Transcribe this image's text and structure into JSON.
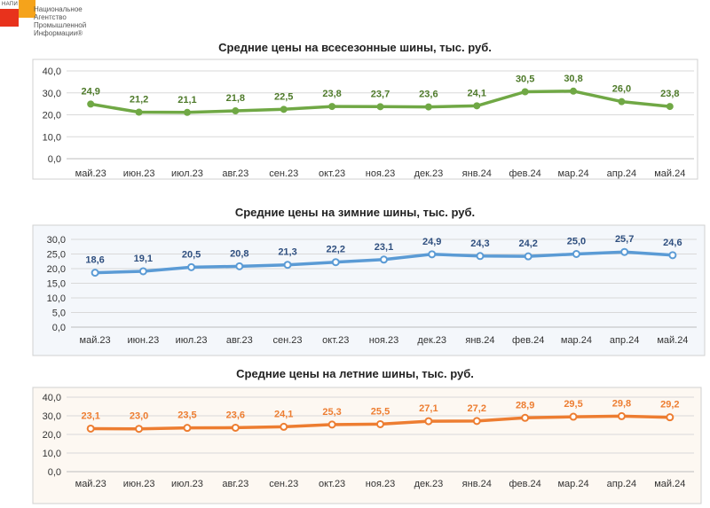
{
  "logo": {
    "abbr": "НАПИ",
    "text": "Национальное Агентство Промышленной Информации®",
    "colors": {
      "red": "#e8321c",
      "orange": "#f5a31b"
    }
  },
  "chart_data": [
    {
      "type": "line",
      "title": "Средние цены на всесезонные шины, тыс. руб.",
      "categories": [
        "май.23",
        "июн.23",
        "июл.23",
        "авг.23",
        "сен.23",
        "окт.23",
        "ноя.23",
        "дек.23",
        "янв.24",
        "фев.24",
        "мар.24",
        "апр.24",
        "май.24"
      ],
      "values": [
        24.9,
        21.2,
        21.1,
        21.8,
        22.5,
        23.8,
        23.7,
        23.6,
        24.1,
        30.5,
        30.8,
        26.0,
        23.8
      ],
      "value_labels": [
        "24,9",
        "21,2",
        "21,1",
        "21,8",
        "22,5",
        "23,8",
        "23,7",
        "23,6",
        "24,1",
        "30,5",
        "30,8",
        "26,0",
        "23,8"
      ],
      "y_ticks": [
        "0,0",
        "10,0",
        "20,0",
        "30,0",
        "40,0"
      ],
      "ylim": [
        0,
        40
      ],
      "color": "#70a845",
      "background": "#ffffff",
      "grid": true
    },
    {
      "type": "line",
      "title": "Средние цены на зимние шины, тыс. руб.",
      "categories": [
        "май.23",
        "июн.23",
        "июл.23",
        "авг.23",
        "сен.23",
        "окт.23",
        "ноя.23",
        "дек.23",
        "янв.24",
        "фев.24",
        "мар.24",
        "апр.24",
        "май.24"
      ],
      "values": [
        18.6,
        19.1,
        20.5,
        20.8,
        21.3,
        22.2,
        23.1,
        24.9,
        24.3,
        24.2,
        25.0,
        25.7,
        24.6
      ],
      "value_labels": [
        "18,6",
        "19,1",
        "20,5",
        "20,8",
        "21,3",
        "22,2",
        "23,1",
        "24,9",
        "24,3",
        "24,2",
        "25,0",
        "25,7",
        "24,6"
      ],
      "y_ticks": [
        "0,0",
        "5,0",
        "10,0",
        "15,0",
        "20,0",
        "25,0",
        "30,0"
      ],
      "ylim": [
        0,
        30
      ],
      "color": "#5b9bd5",
      "label_color": "#2f4f7f",
      "background": "#f4f7fb",
      "grid": true
    },
    {
      "type": "line",
      "title": "Средние цены на летние шины, тыс. руб.",
      "categories": [
        "май.23",
        "июн.23",
        "июл.23",
        "авг.23",
        "сен.23",
        "окт.23",
        "ноя.23",
        "дек.23",
        "янв.24",
        "фев.24",
        "мар.24",
        "апр.24",
        "май.24"
      ],
      "values": [
        23.1,
        23.0,
        23.5,
        23.6,
        24.1,
        25.3,
        25.5,
        27.1,
        27.2,
        28.9,
        29.5,
        29.8,
        29.2
      ],
      "value_labels": [
        "23,1",
        "23,0",
        "23,5",
        "23,6",
        "24,1",
        "25,3",
        "25,5",
        "27,1",
        "27,2",
        "28,9",
        "29,5",
        "29,8",
        "29,2"
      ],
      "y_ticks": [
        "0,0",
        "10,0",
        "20,0",
        "30,0",
        "40,0"
      ],
      "ylim": [
        0,
        40
      ],
      "color": "#ed7d31",
      "label_color": "#ed7d31",
      "background": "#fdf8f2",
      "grid": true
    }
  ]
}
